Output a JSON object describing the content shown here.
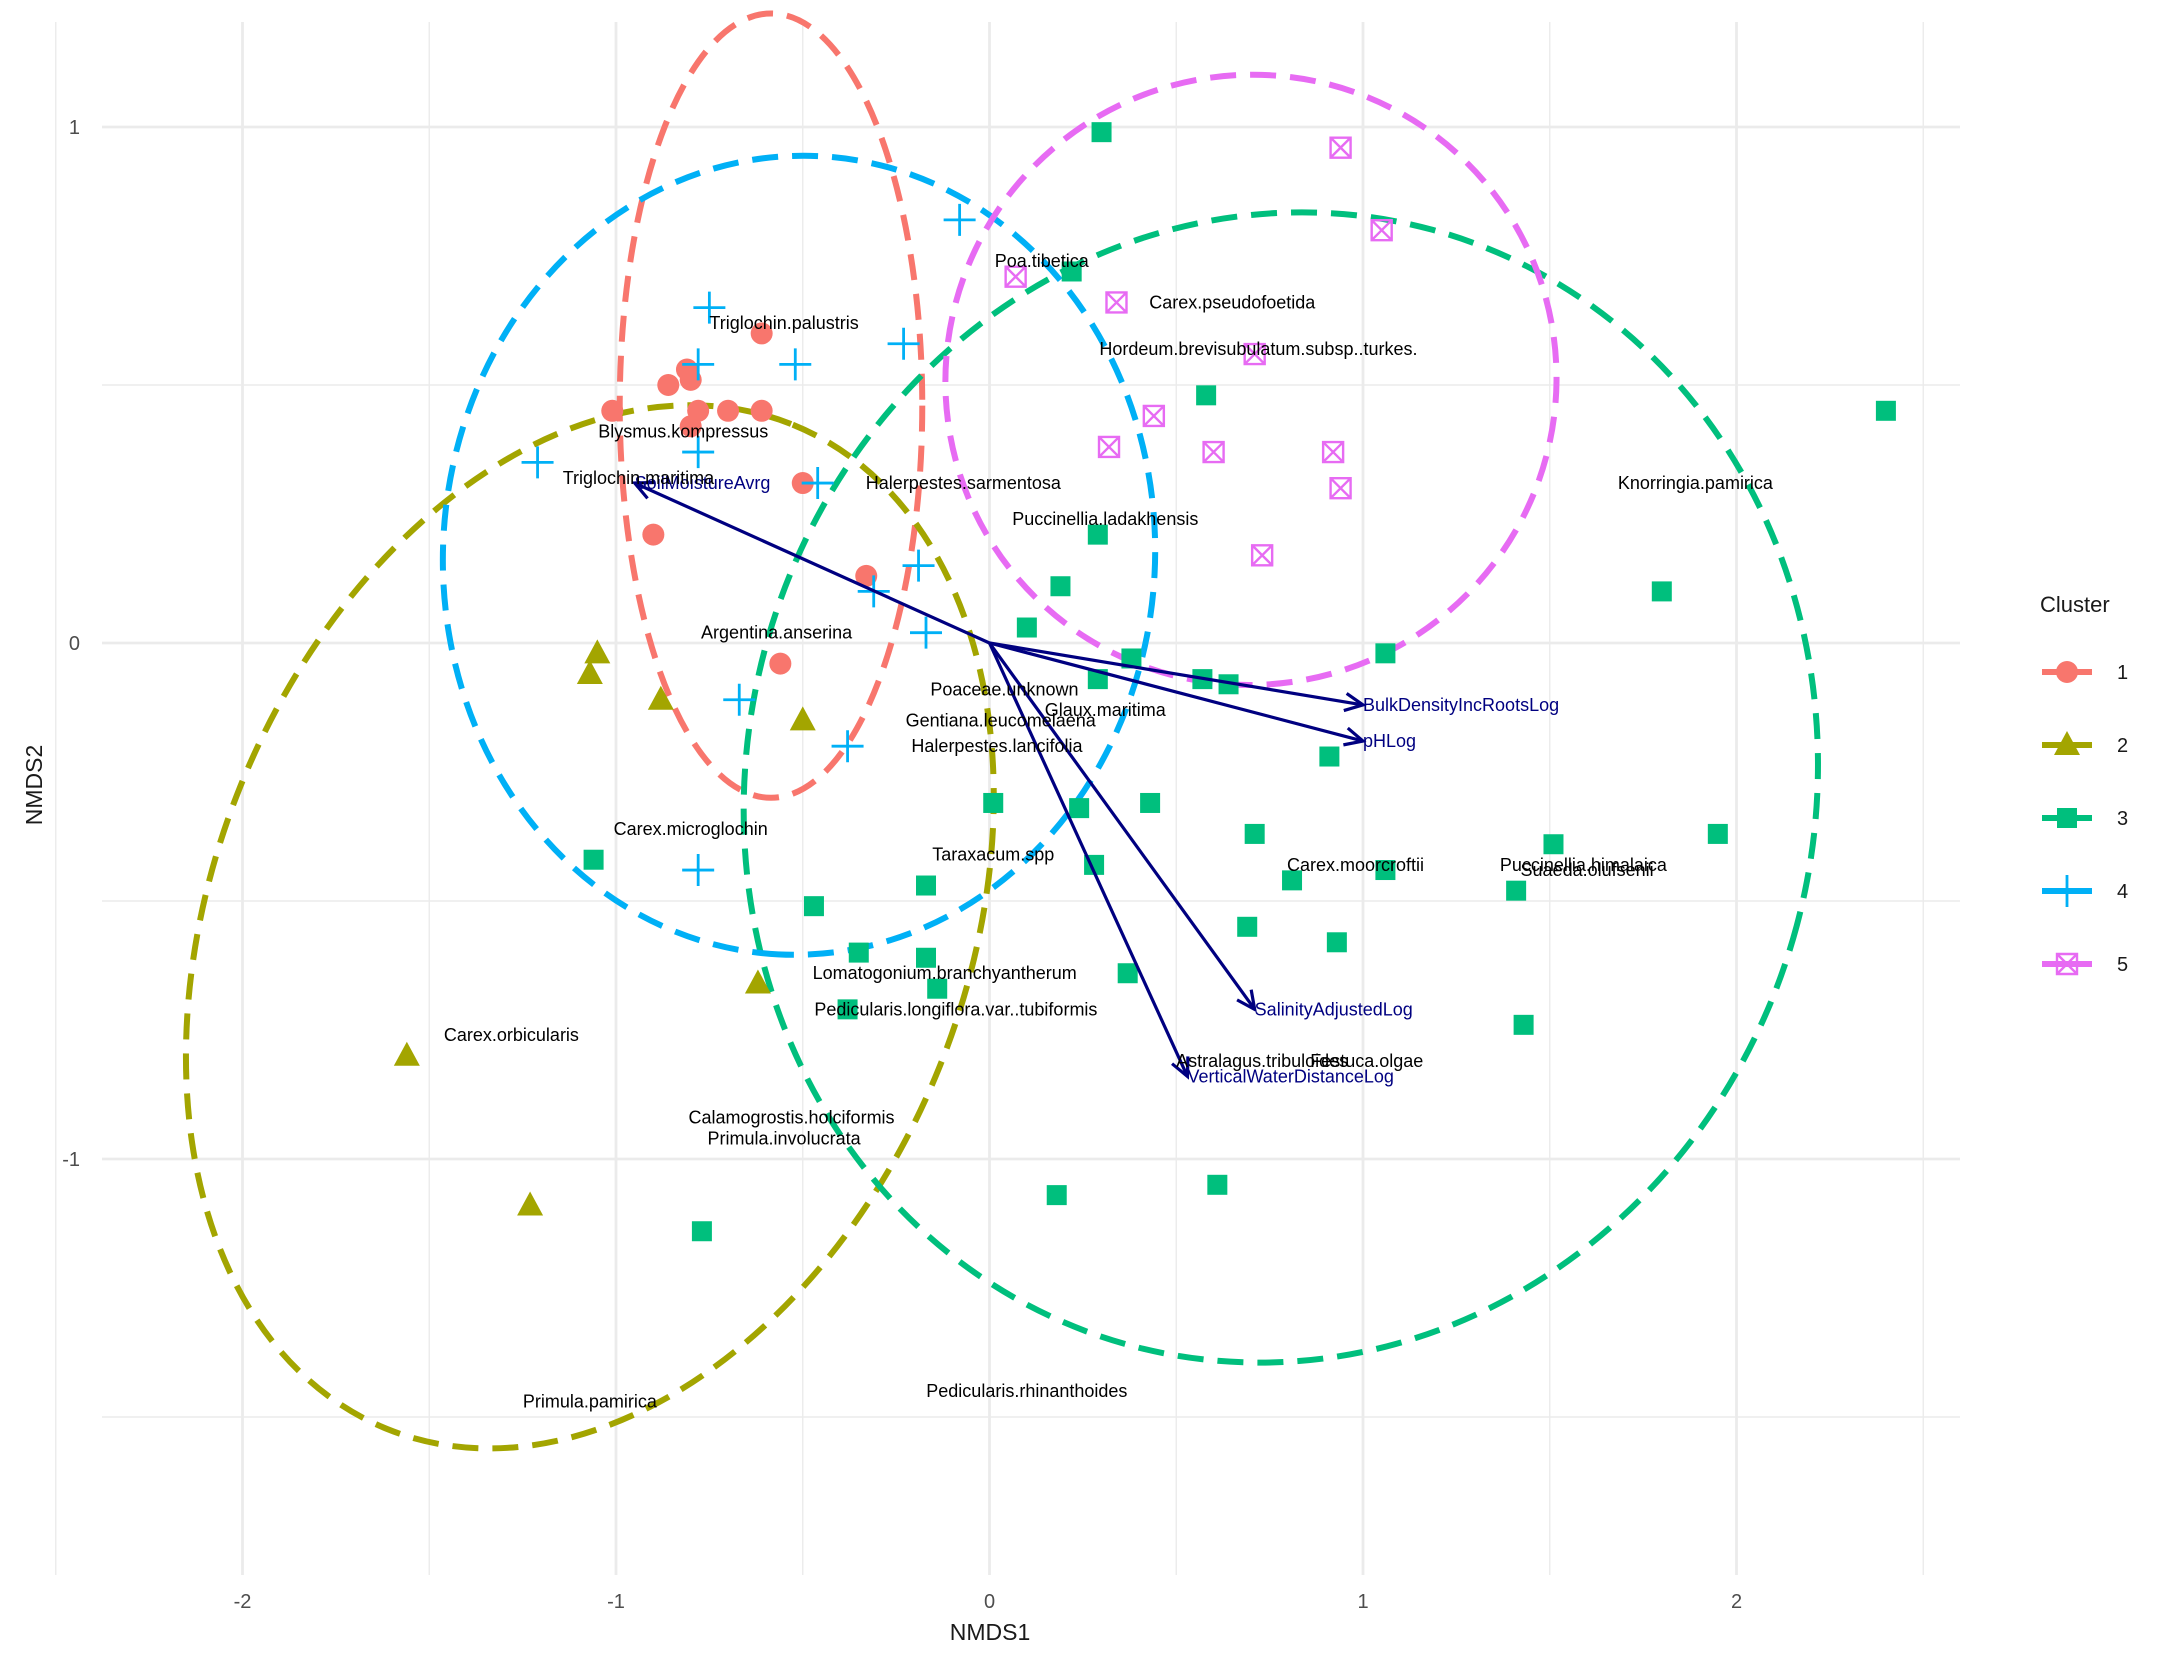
{
  "chart_data": {
    "type": "scatter",
    "title": "",
    "xlabel": "NMDS1",
    "ylabel": "NMDS2",
    "xlim": [
      -2.5,
      2.6
    ],
    "ylim": [
      -1.8,
      1.2
    ],
    "x_ticks": [
      -2,
      -1,
      0,
      1,
      2
    ],
    "y_ticks": [
      -1,
      0,
      1
    ],
    "grid": true,
    "legend": {
      "title": "Cluster",
      "position": "right",
      "entries": [
        {
          "label": "1",
          "color": "#F8766D",
          "shape": "circle"
        },
        {
          "label": "2",
          "color": "#A3A500",
          "shape": "triangle"
        },
        {
          "label": "3",
          "color": "#00BF7D",
          "shape": "square"
        },
        {
          "label": "4",
          "color": "#00B0F6",
          "shape": "plus"
        },
        {
          "label": "5",
          "color": "#E76BF3",
          "shape": "boxcross"
        }
      ]
    },
    "series": [
      {
        "name": "1",
        "color": "#F8766D",
        "shape": "circle",
        "points": [
          [
            -0.61,
            0.6
          ],
          [
            -0.81,
            0.53
          ],
          [
            -0.86,
            0.5
          ],
          [
            -0.8,
            0.51
          ],
          [
            -1.01,
            0.45
          ],
          [
            -0.78,
            0.45
          ],
          [
            -0.7,
            0.45
          ],
          [
            -0.61,
            0.45
          ],
          [
            -0.8,
            0.42
          ],
          [
            -0.5,
            0.31
          ],
          [
            -0.9,
            0.21
          ],
          [
            -0.33,
            0.13
          ],
          [
            -0.56,
            -0.04
          ]
        ]
      },
      {
        "name": "2",
        "color": "#A3A500",
        "shape": "triangle",
        "points": [
          [
            -1.05,
            -0.02
          ],
          [
            -1.07,
            -0.06
          ],
          [
            -0.88,
            -0.11
          ],
          [
            -0.5,
            -0.15
          ],
          [
            -0.62,
            -0.66
          ],
          [
            -1.56,
            -0.8
          ],
          [
            -1.23,
            -1.09
          ]
        ]
      },
      {
        "name": "3",
        "color": "#00BF7D",
        "shape": "square",
        "points": [
          [
            0.3,
            0.99
          ],
          [
            0.22,
            0.72
          ],
          [
            2.4,
            0.45
          ],
          [
            0.58,
            0.48
          ],
          [
            0.29,
            0.21
          ],
          [
            1.8,
            0.1
          ],
          [
            0.19,
            0.11
          ],
          [
            0.1,
            0.03
          ],
          [
            0.38,
            -0.03
          ],
          [
            1.06,
            -0.02
          ],
          [
            0.29,
            -0.07
          ],
          [
            0.57,
            -0.07
          ],
          [
            0.64,
            -0.08
          ],
          [
            0.91,
            -0.22
          ],
          [
            0.01,
            -0.31
          ],
          [
            0.24,
            -0.32
          ],
          [
            0.43,
            -0.31
          ],
          [
            0.71,
            -0.37
          ],
          [
            1.51,
            -0.39
          ],
          [
            1.95,
            -0.37
          ],
          [
            -1.06,
            -0.42
          ],
          [
            0.28,
            -0.43
          ],
          [
            0.81,
            -0.46
          ],
          [
            1.06,
            -0.44
          ],
          [
            -0.17,
            -0.47
          ],
          [
            1.41,
            -0.48
          ],
          [
            -0.47,
            -0.51
          ],
          [
            0.69,
            -0.55
          ],
          [
            0.93,
            -0.58
          ],
          [
            -0.35,
            -0.6
          ],
          [
            -0.17,
            -0.61
          ],
          [
            0.37,
            -0.64
          ],
          [
            -0.14,
            -0.67
          ],
          [
            -0.38,
            -0.71
          ],
          [
            1.43,
            -0.74
          ],
          [
            0.18,
            -1.07
          ],
          [
            0.61,
            -1.05
          ],
          [
            -0.77,
            -1.14
          ]
        ]
      },
      {
        "name": "4",
        "color": "#00B0F6",
        "shape": "plus",
        "points": [
          [
            -0.08,
            0.82
          ],
          [
            -0.75,
            0.65
          ],
          [
            -0.23,
            0.58
          ],
          [
            -0.78,
            0.54
          ],
          [
            -0.52,
            0.54
          ],
          [
            -1.21,
            0.35
          ],
          [
            -0.78,
            0.37
          ],
          [
            -0.46,
            0.31
          ],
          [
            -0.19,
            0.15
          ],
          [
            -0.31,
            0.1
          ],
          [
            -0.17,
            0.02
          ],
          [
            -0.67,
            -0.11
          ],
          [
            -0.38,
            -0.2
          ],
          [
            -0.78,
            -0.44
          ]
        ]
      },
      {
        "name": "5",
        "color": "#E76BF3",
        "shape": "boxcross",
        "points": [
          [
            0.94,
            0.96
          ],
          [
            1.05,
            0.8
          ],
          [
            0.07,
            0.71
          ],
          [
            0.34,
            0.66
          ],
          [
            0.71,
            0.56
          ],
          [
            0.44,
            0.44
          ],
          [
            0.32,
            0.38
          ],
          [
            0.6,
            0.37
          ],
          [
            0.92,
            0.37
          ],
          [
            0.94,
            0.3
          ],
          [
            0.73,
            0.17
          ]
        ]
      }
    ],
    "ellipses": [
      {
        "cluster": "1",
        "color": "#F8766D",
        "cx": -0.585,
        "cy": 0.46,
        "rx": 0.405,
        "ry": 0.76,
        "angle": 0
      },
      {
        "cluster": "2",
        "color": "#A3A500",
        "cx": -1.07,
        "cy": -0.55,
        "rx": 1.45,
        "ry": 0.73,
        "angle": -68
      },
      {
        "cluster": "3",
        "color": "#00BF7D",
        "cx": 0.78,
        "cy": -0.28,
        "rx": 1.43,
        "ry": 1.12,
        "angle": 15
      },
      {
        "cluster": "4",
        "color": "#00B0F6",
        "cx": -0.51,
        "cy": 0.17,
        "rx": 1.07,
        "ry": 0.69,
        "angle": 93
      },
      {
        "cluster": "5",
        "color": "#E76BF3",
        "cx": 0.7,
        "cy": 0.51,
        "rx": 0.82,
        "ry": 0.59,
        "angle": -38
      }
    ],
    "species": [
      {
        "label": "Poa.tibetica",
        "x": 0.14,
        "y": 0.74
      },
      {
        "label": "Carex.pseudofoetida",
        "x": 0.65,
        "y": 0.66
      },
      {
        "label": "Triglochin.palustris",
        "x": -0.55,
        "y": 0.62
      },
      {
        "label": "Hordeum.brevisubulatum.subsp..turkes.",
        "x": 0.72,
        "y": 0.57
      },
      {
        "label": "Blysmus.kompressus",
        "x": -0.82,
        "y": 0.41
      },
      {
        "label": "Triglochin.maritima",
        "x": -0.94,
        "y": 0.32
      },
      {
        "label": "Halerpestes.sarmentosa",
        "x": -0.07,
        "y": 0.31
      },
      {
        "label": "Knorringia.pamirica",
        "x": 1.89,
        "y": 0.31
      },
      {
        "label": "Puccinellia.ladakhensis",
        "x": 0.31,
        "y": 0.24
      },
      {
        "label": "Argentina.anserina",
        "x": -0.57,
        "y": 0.02
      },
      {
        "label": "Poaceae.unknown",
        "x": 0.04,
        "y": -0.09
      },
      {
        "label": "Glaux.maritima",
        "x": 0.31,
        "y": -0.13
      },
      {
        "label": "Gentiana.leucomelaena",
        "x": 0.03,
        "y": -0.15
      },
      {
        "label": "Halerpestes.lancifolia",
        "x": 0.02,
        "y": -0.2
      },
      {
        "label": "Carex.microglochin",
        "x": -0.8,
        "y": -0.36
      },
      {
        "label": "Taraxacum.spp",
        "x": 0.01,
        "y": -0.41
      },
      {
        "label": "Carex.moorcroftii",
        "x": 0.98,
        "y": -0.43
      },
      {
        "label": "Puccinellia.himalaica",
        "x": 1.59,
        "y": -0.43
      },
      {
        "label": "Suaeda.olufsenii",
        "x": 1.6,
        "y": -0.44
      },
      {
        "label": "Lomatogonium.branchyantherum",
        "x": -0.12,
        "y": -0.64
      },
      {
        "label": "Pedicularis.longiflora.var..tubiformis",
        "x": -0.09,
        "y": -0.71
      },
      {
        "label": "Carex.orbicularis",
        "x": -1.28,
        "y": -0.76
      },
      {
        "label": "Astralagus.tribuloides",
        "x": 0.73,
        "y": -0.81
      },
      {
        "label": "Festuca.olgae",
        "x": 1.01,
        "y": -0.81
      },
      {
        "label": "Calamogrostis.holciformis",
        "x": -0.53,
        "y": -0.92
      },
      {
        "label": "Primula.involucrata",
        "x": -0.55,
        "y": -0.96
      },
      {
        "label": "Pedicularis.rhinanthoides",
        "x": 0.1,
        "y": -1.45
      },
      {
        "label": "Primula.pamirica",
        "x": -1.07,
        "y": -1.47
      }
    ],
    "vectors": [
      {
        "label": "SoilMoistureAvrg",
        "x": -0.95,
        "y": 0.31,
        "color": "#000080"
      },
      {
        "label": "BulkDensityIncRootsLog",
        "x": 1.0,
        "y": -0.12,
        "color": "#000080"
      },
      {
        "label": "pHLog",
        "x": 1.0,
        "y": -0.19,
        "color": "#000080"
      },
      {
        "label": "SalinityAdjustedLog",
        "x": 0.71,
        "y": -0.71,
        "color": "#000080"
      },
      {
        "label": "VerticalWaterDistanceLog",
        "x": 0.53,
        "y": -0.84,
        "color": "#000080"
      }
    ]
  }
}
